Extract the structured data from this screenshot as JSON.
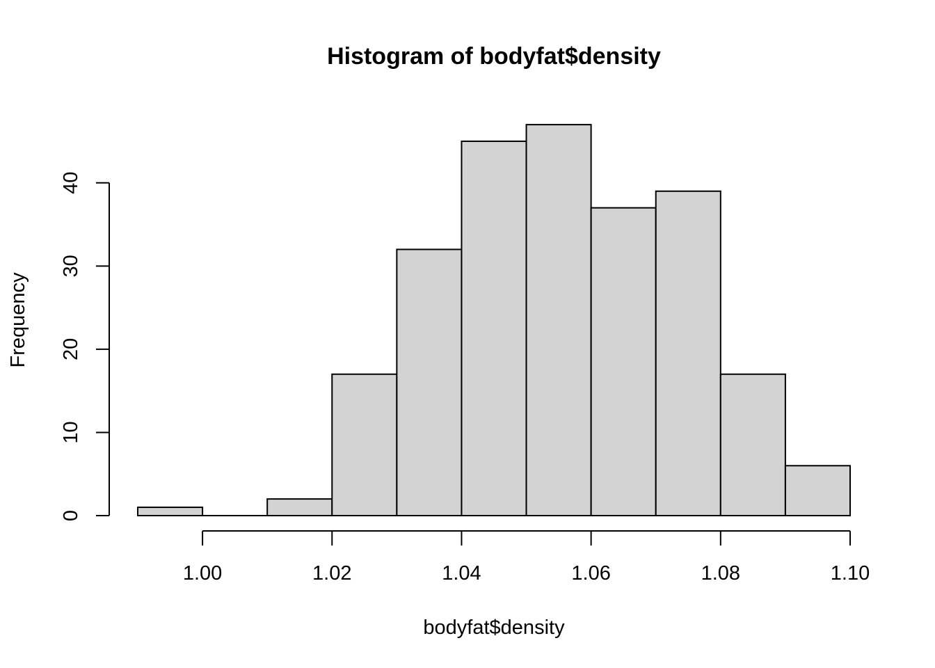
{
  "chart_data": {
    "type": "bar",
    "title": "Histogram of bodyfat$density",
    "xlabel": "bodyfat$density",
    "ylabel": "Frequency",
    "bins": [
      {
        "start": 0.99,
        "end": 1.0,
        "count": 1
      },
      {
        "start": 1.0,
        "end": 1.01,
        "count": 0
      },
      {
        "start": 1.01,
        "end": 1.02,
        "count": 2
      },
      {
        "start": 1.02,
        "end": 1.03,
        "count": 17
      },
      {
        "start": 1.03,
        "end": 1.04,
        "count": 32
      },
      {
        "start": 1.04,
        "end": 1.05,
        "count": 45
      },
      {
        "start": 1.05,
        "end": 1.06,
        "count": 47
      },
      {
        "start": 1.06,
        "end": 1.07,
        "count": 37
      },
      {
        "start": 1.07,
        "end": 1.08,
        "count": 39
      },
      {
        "start": 1.08,
        "end": 1.09,
        "count": 17
      },
      {
        "start": 1.09,
        "end": 1.1,
        "count": 6
      }
    ],
    "xlim": [
      0.99,
      1.1
    ],
    "ylim": [
      0,
      47
    ],
    "x_ticks": [
      1.0,
      1.02,
      1.04,
      1.06,
      1.08,
      1.1
    ],
    "x_tick_labels": [
      "1.00",
      "1.02",
      "1.04",
      "1.06",
      "1.08",
      "1.10"
    ],
    "y_ticks": [
      0,
      10,
      20,
      30,
      40
    ],
    "y_tick_labels": [
      "0",
      "10",
      "20",
      "30",
      "40"
    ],
    "grid": false,
    "bar_color": "#d3d3d3",
    "edge_color": "#000000"
  }
}
